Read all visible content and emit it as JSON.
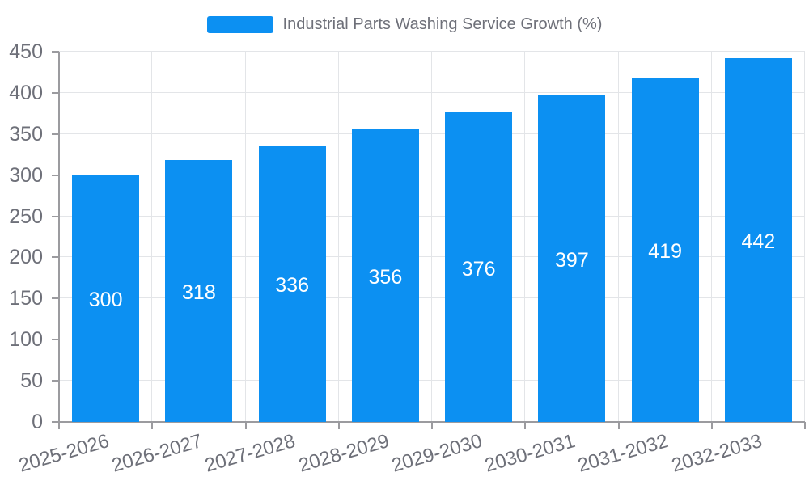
{
  "legend": {
    "label": "Industrial Parts Washing Service Growth (%)"
  },
  "colors": {
    "bar": "#0c90f2",
    "bar_label": "#ffffff",
    "axis_line": "#9b9b9f",
    "grid_line": "#e3e5e8",
    "text": "#6e7079",
    "background": "#ffffff"
  },
  "chart_data": {
    "type": "bar",
    "title": "Industrial Parts Washing Service Growth (%)",
    "categories": [
      "2025-2026",
      "2026-2027",
      "2027-2028",
      "2028-2029",
      "2029-2030",
      "2030-2031",
      "2031-2032",
      "2032-2033"
    ],
    "values": [
      300,
      318,
      336,
      356,
      376,
      397,
      419,
      442
    ],
    "yticks": [
      0,
      50,
      100,
      150,
      200,
      250,
      300,
      350,
      400,
      450
    ],
    "ylim": [
      0,
      450
    ],
    "xlabel": "",
    "ylabel": "",
    "grid": "on",
    "grid_vertical": "on",
    "legend_position": "top-center",
    "bar_labels_inside": "centered"
  }
}
